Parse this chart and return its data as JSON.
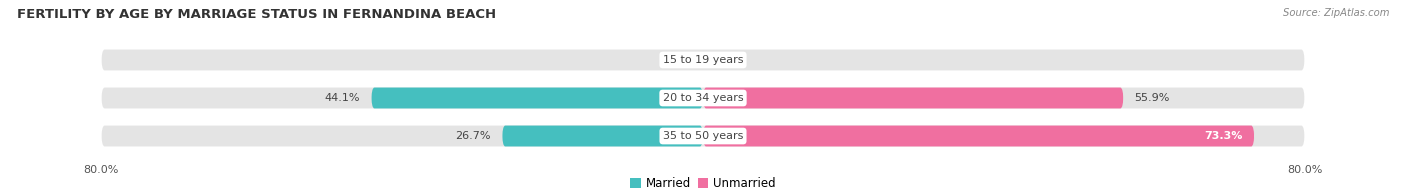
{
  "title": "FERTILITY BY AGE BY MARRIAGE STATUS IN FERNANDINA BEACH",
  "source": "Source: ZipAtlas.com",
  "categories": [
    "15 to 19 years",
    "20 to 34 years",
    "35 to 50 years"
  ],
  "married": [
    0.0,
    44.1,
    26.7
  ],
  "unmarried": [
    0.0,
    55.9,
    73.3
  ],
  "x_max": 80.0,
  "x_tick_left": "80.0%",
  "x_tick_right": "80.0%",
  "bar_height": 0.55,
  "color_married": "#45bfbf",
  "color_unmarried": "#f06fa0",
  "color_bg_bar": "#e4e4e4",
  "color_bg": "#ffffff",
  "label_fontsize": 8.0,
  "title_fontsize": 9.5,
  "legend_fontsize": 8.5,
  "cat_label_fontsize": 8.0
}
